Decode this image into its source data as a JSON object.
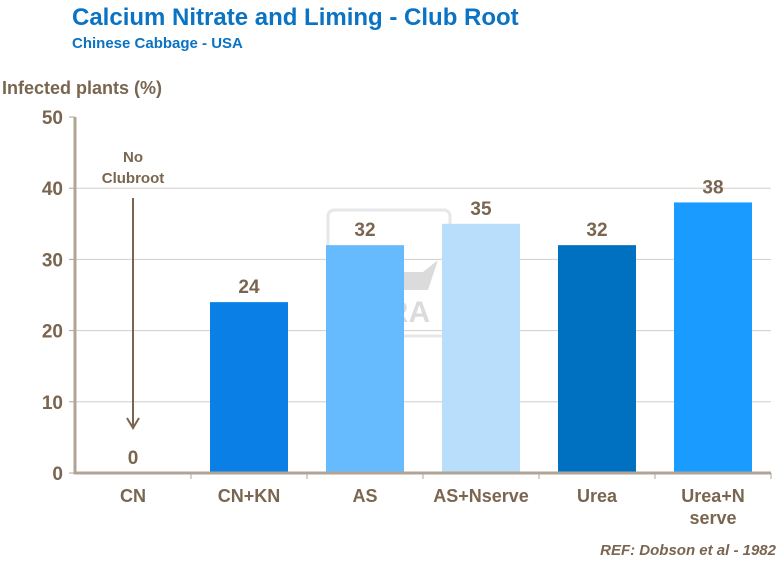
{
  "chart_data": {
    "type": "bar",
    "title": "Calcium Nitrate and Liming - Club Root",
    "subtitle": "Chinese Cabbage - USA",
    "ylabel": "Infected plants (%)",
    "xlabel": "",
    "ylim": [
      0,
      50
    ],
    "yticks": [
      0,
      10,
      20,
      30,
      40,
      50
    ],
    "grid": true,
    "categories": [
      "CN",
      "CN+KN",
      "AS",
      "AS+Nserve",
      "Urea",
      "Urea+N serve"
    ],
    "values": [
      0,
      24,
      32,
      35,
      32,
      38
    ],
    "colors": [
      "#ffffff",
      "#0a80e6",
      "#66bbff",
      "#b9defc",
      "#0071c1",
      "#1a9bff"
    ],
    "annotation": "No Clubroot",
    "reference": "REF: Dobson et al - 1982",
    "watermark": "YARA"
  }
}
